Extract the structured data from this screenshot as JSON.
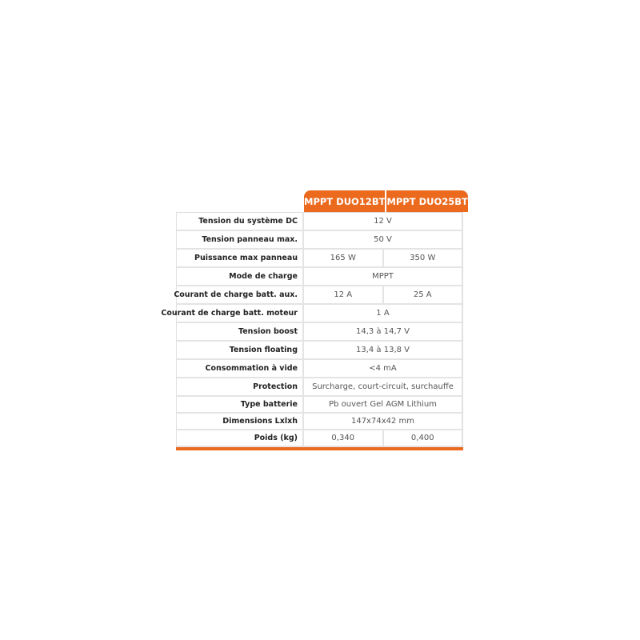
{
  "accent_color": "#eb6a1e",
  "columns": [
    "MPPT DUO12BT",
    "MPPT DUO25BT"
  ],
  "rows": [
    {
      "label": "Tension du système DC",
      "values": [
        "12 V"
      ]
    },
    {
      "label": "Tension panneau max.",
      "values": [
        "50 V"
      ]
    },
    {
      "label": "Puissance max panneau",
      "values": [
        "165 W",
        "350 W"
      ]
    },
    {
      "label": "Mode de charge",
      "values": [
        "MPPT"
      ]
    },
    {
      "label": "Courant de charge batt. aux.",
      "values": [
        "12 A",
        "25 A"
      ]
    },
    {
      "label": "Courant de charge batt. moteur",
      "values": [
        "1 A"
      ]
    },
    {
      "label": "Tension boost",
      "values": [
        "14,3 à 14,7 V"
      ]
    },
    {
      "label": "Tension floating",
      "values": [
        "13,4 à 13,8 V"
      ]
    },
    {
      "label": "Consommation à vide",
      "values": [
        "<4 mA"
      ]
    },
    {
      "label": "Protection",
      "values": [
        "Surcharge, court-circuit, surchauffe"
      ]
    },
    {
      "label": "Type batterie",
      "values": [
        "Pb ouvert Gel AGM Lithium"
      ]
    },
    {
      "label": "Dimensions Lxlxh",
      "values": [
        "147x74x42 mm"
      ]
    },
    {
      "label": "Poids (kg)",
      "values": [
        "0,340",
        "0,400"
      ]
    }
  ]
}
